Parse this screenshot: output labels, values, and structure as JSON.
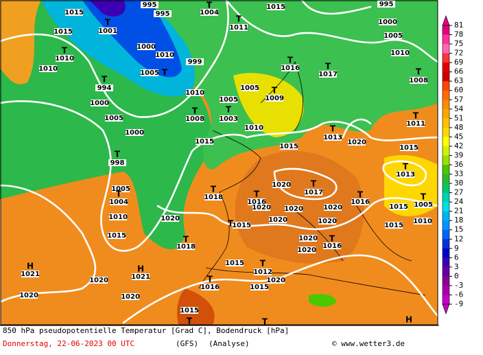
{
  "map_labels": [
    "T",
    1004,
    1015,
    995,
    995,
    "T",
    1001,
    "T",
    1011,
    1015,
    995,
    1000,
    1005,
    1010,
    "T",
    1008,
    "T",
    1016,
    "T",
    1017,
    1015,
    "T",
    1010,
    1010,
    "T",
    994,
    1000,
    1005,
    1000,
    "T",
    998,
    1005,
    "T",
    1004,
    1010,
    1015,
    1020,
    1020,
    "H",
    1021,
    "H",
    1021,
    1020,
    1020,
    1015,
    "T",
    "T",
    "H",
    1010,
    "T",
    1008,
    "T",
    1003,
    1005,
    1005,
    "T",
    1009,
    1010,
    1015,
    1015,
    "T",
    1013,
    1020,
    "T",
    1011,
    1015,
    "T",
    1013,
    "T",
    1018,
    1020,
    "T",
    1017,
    "T",
    1016,
    "T",
    1016,
    1020,
    1020,
    1020,
    1015,
    "T",
    1005,
    "T",
    1015,
    1020,
    1020,
    1015,
    1010,
    "T",
    1018,
    1020,
    "T",
    1016,
    1020,
    1015,
    "T",
    1012,
    1020,
    "T",
    1016,
    1015,
    1000,
    1005,
    1010,
    "T",
    999
  ],
  "colorbar": {
    "ticks": [
      81,
      78,
      75,
      72,
      69,
      66,
      63,
      60,
      57,
      54,
      51,
      48,
      45,
      42,
      39,
      36,
      33,
      30,
      27,
      24,
      21,
      18,
      15,
      12,
      9,
      6,
      3,
      0,
      -3,
      -6,
      -9
    ],
    "colors": [
      "#e6007e",
      "#ff3399",
      "#ff66b2",
      "#ff3333",
      "#e60000",
      "#cc0000",
      "#ff4500",
      "#ff6a00",
      "#ff8c00",
      "#ffa500",
      "#ffc000",
      "#ffd700",
      "#ffff00",
      "#d4f000",
      "#9be000",
      "#4cc800",
      "#2eb82e",
      "#00c864",
      "#00d2b4",
      "#00e0e0",
      "#00b4f0",
      "#0096ff",
      "#0064ff",
      "#0032dc",
      "#0000c8",
      "#3c00b4",
      "#6400a0",
      "#8c0096",
      "#aa00aa",
      "#c800c8"
    ]
  },
  "footer": {
    "title": "850 hPa pseudopotentielle Temperatur [Grad C], Bodendruck [hPa]",
    "date": "Donnerstag, 22-06-2023  00 UTC",
    "model": "(GFS)",
    "mode": "(Analyse)",
    "credit": "© www.wetter3.de"
  }
}
